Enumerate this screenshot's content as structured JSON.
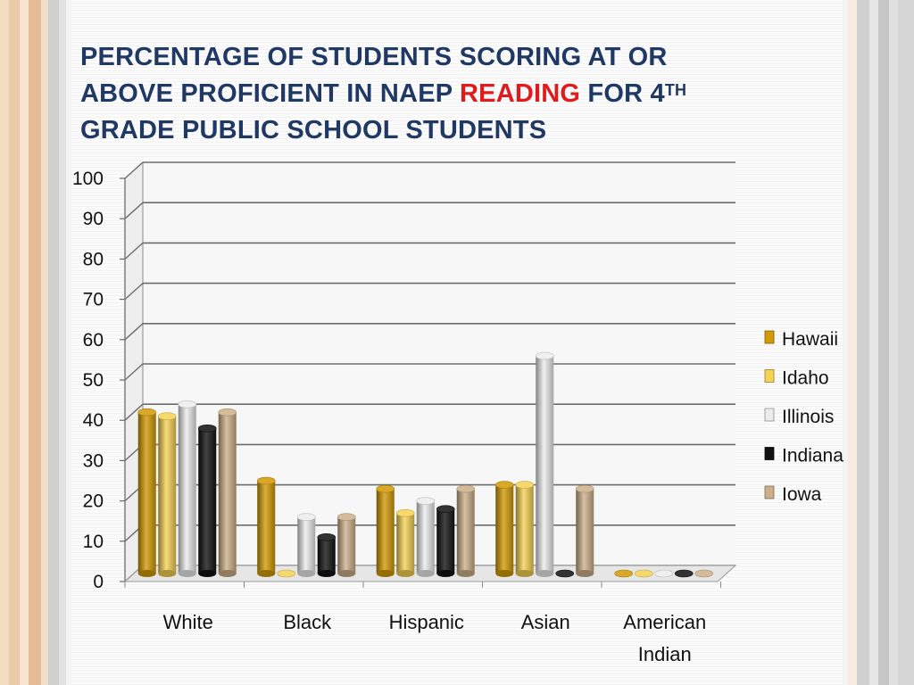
{
  "slide": {
    "title_line1": "PERCENTAGE OF STUDENTS SCORING AT OR",
    "title_line2_pre": "ABOVE PROFICIENT IN NAEP ",
    "title_line2_accent": "READING",
    "title_line2_post": " FOR 4",
    "title_sup": "TH",
    "title_line3": "GRADE PUBLIC SCHOOL STUDENTS",
    "accent_color": "#e01b1b",
    "title_color": "#1f3864"
  },
  "chart_data": {
    "type": "bar",
    "categories": [
      "White",
      "Black",
      "Hispanic",
      "Asian",
      "American Indian"
    ],
    "category_lines": [
      [
        "White"
      ],
      [
        "Black"
      ],
      [
        "Hispanic"
      ],
      [
        "Asian"
      ],
      [
        "American",
        "Indian"
      ]
    ],
    "series": [
      {
        "name": "Hawaii",
        "color": "#d39a06",
        "values": [
          40,
          23,
          21,
          22,
          0
        ]
      },
      {
        "name": "Idaho",
        "color": "#f6d255",
        "values": [
          39,
          0,
          15,
          22,
          0
        ]
      },
      {
        "name": "Illinois",
        "color": "#ececec",
        "values": [
          42,
          14,
          18,
          54,
          0
        ]
      },
      {
        "name": "Indiana",
        "color": "#111111",
        "values": [
          36,
          9,
          16,
          0,
          0
        ]
      },
      {
        "name": "Iowa",
        "color": "#cdb08a",
        "values": [
          40,
          14,
          21,
          21,
          0
        ]
      }
    ],
    "y_ticks": [
      "0",
      "10",
      "20",
      "30",
      "40",
      "50",
      "60",
      "70",
      "80",
      "90",
      "100"
    ],
    "ylim": [
      0,
      100
    ],
    "grid": true,
    "legend_position": "right"
  }
}
